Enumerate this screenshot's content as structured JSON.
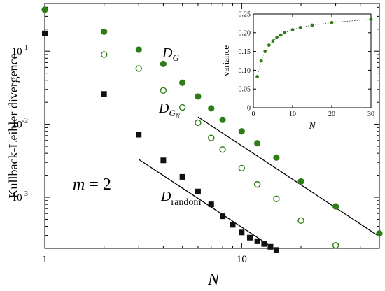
{
  "chart_data": [
    {
      "type": "scatter",
      "xscale": "log",
      "yscale": "log",
      "xlim": [
        1,
        50
      ],
      "ylim": [
        0.0002,
        0.45
      ],
      "xlabel": "N",
      "ylabel": "Kullback-Leibler divergence",
      "x_ticks": [
        1,
        10
      ],
      "x_tick_labels": [
        "1",
        "10"
      ],
      "y_ticks": [
        0.001,
        0.01,
        0.1
      ],
      "y_tick_labels": [
        "10",
        "10",
        "10"
      ],
      "y_tick_exponents": [
        "-3",
        "-2",
        "-1"
      ],
      "annotations": {
        "m": "m",
        "m_eq": " = 2",
        "dg_main": "D",
        "dg_sub": "G",
        "dgn_main": "D",
        "dgn_sub": "G",
        "dgn_subsub": "N",
        "dr_main": "D",
        "dr_sub": "random"
      },
      "series": [
        {
          "key": "DG",
          "marker": "filled-circle",
          "color": "#2e7d16",
          "x": [
            1,
            2,
            3,
            4,
            5,
            6,
            7,
            8,
            10,
            12,
            15,
            20,
            30,
            50
          ],
          "y": [
            0.37,
            0.185,
            0.105,
            0.067,
            0.037,
            0.024,
            0.0165,
            0.0115,
            0.008,
            0.0055,
            0.0035,
            0.00165,
            0.00075,
            0.00032
          ]
        },
        {
          "key": "DGN",
          "marker": "open-circle",
          "color": "#2e7d16",
          "x": [
            2,
            3,
            4,
            5,
            6,
            7,
            8,
            10,
            12,
            15,
            20,
            30
          ],
          "y": [
            0.09,
            0.058,
            0.029,
            0.017,
            0.0105,
            0.0065,
            0.0045,
            0.0025,
            0.0015,
            0.00095,
            0.00048,
            0.00022
          ]
        },
        {
          "key": "Drandom",
          "marker": "filled-square",
          "color": "#111111",
          "x": [
            1,
            2,
            3,
            4,
            5,
            6,
            7,
            8,
            9,
            10,
            11,
            12,
            13,
            14,
            15
          ],
          "y": [
            0.175,
            0.026,
            0.0072,
            0.0032,
            0.0019,
            0.0012,
            0.0008,
            0.00055,
            0.00042,
            0.00033,
            0.00028,
            0.00025,
            0.00023,
            0.00021,
            0.00019
          ]
        }
      ],
      "fit_lines": [
        {
          "key": "fit-upper",
          "color": "#000000",
          "x": [
            6,
            50
          ],
          "y": [
            0.0126,
            0.00029
          ]
        },
        {
          "key": "fit-lower",
          "color": "#000000",
          "x": [
            3,
            15
          ],
          "y": [
            0.0033,
            0.00019
          ]
        }
      ]
    },
    {
      "type": "line",
      "inset": true,
      "xlabel": "N",
      "ylabel": "variance",
      "xlim": [
        0,
        30
      ],
      "ylim": [
        0,
        0.25
      ],
      "x_ticks": [
        0,
        10,
        20,
        30
      ],
      "y_ticks": [
        0,
        0.05,
        0.1,
        0.15,
        0.2,
        0.25
      ],
      "y_tick_labels": [
        "0",
        "0.05",
        "0.10",
        "0.15",
        "0.20",
        "0.25"
      ],
      "series": [
        {
          "key": "variance",
          "marker": "filled-circle",
          "line": "dotted",
          "color": "#2e7d16",
          "x": [
            1,
            2,
            3,
            4,
            5,
            6,
            7,
            8,
            10,
            12,
            15,
            20,
            30
          ],
          "y": [
            0.083,
            0.125,
            0.15,
            0.167,
            0.178,
            0.187,
            0.194,
            0.2,
            0.208,
            0.214,
            0.22,
            0.227,
            0.236
          ]
        }
      ]
    }
  ]
}
